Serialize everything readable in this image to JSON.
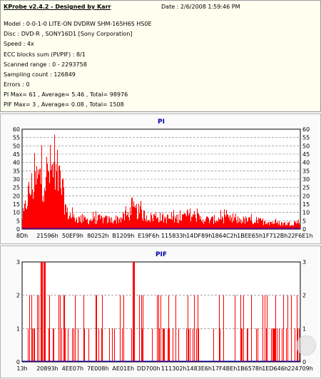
{
  "info": {
    "title": "KProbe v2.4.2 - Designed by Karr",
    "date": "Date : 2/6/2008 1:59:46 PM",
    "lines": [
      "Model : 0-0-1-0 LITE-ON DVDRW SHM-165H6S HS0E",
      "Disc : DVD-R , SONY16D1 [Sony Corporation]",
      "Speed : 4x",
      "ECC blocks sum (PI/PIF) : 8/1",
      "Scanned range : 0 - 2293758",
      "Sampling count : 126849",
      "Errors : 0",
      "PI Max= 61 , Average= 5.46 , Total= 98976",
      "PIF Max= 3 , Average= 0.08 , Total= 1508"
    ]
  },
  "chart_data": [
    {
      "type": "area",
      "title": "PI",
      "ylim": [
        0,
        60
      ],
      "yticks": [
        0,
        5,
        10,
        15,
        20,
        25,
        30,
        35,
        40,
        45,
        50,
        55,
        60
      ],
      "xticks": [
        "8Dh",
        "21596h",
        "50EF9h",
        "80252h",
        "B1209h",
        "E19F6h",
        "115833h",
        "14DF89h",
        "1864C2h",
        "1BEE65h",
        "1F712Bh",
        "22F6E1h"
      ],
      "max": 61,
      "profile": [
        [
          0,
          8
        ],
        [
          2,
          30
        ],
        [
          4,
          40
        ],
        [
          6,
          45
        ],
        [
          8,
          46
        ],
        [
          10,
          52
        ],
        [
          12,
          50
        ],
        [
          14,
          38
        ],
        [
          16,
          14
        ],
        [
          18,
          11
        ],
        [
          20,
          9
        ],
        [
          24,
          8
        ],
        [
          28,
          9
        ],
        [
          32,
          8
        ],
        [
          36,
          10
        ],
        [
          38,
          13
        ],
        [
          40,
          17
        ],
        [
          42,
          15
        ],
        [
          44,
          12
        ],
        [
          46,
          10
        ],
        [
          48,
          12
        ],
        [
          50,
          10
        ],
        [
          54,
          9
        ],
        [
          58,
          11
        ],
        [
          60,
          13
        ],
        [
          62,
          12
        ],
        [
          64,
          9
        ],
        [
          68,
          8
        ],
        [
          72,
          10
        ],
        [
          76,
          8
        ],
        [
          80,
          8
        ],
        [
          84,
          7
        ],
        [
          88,
          7
        ],
        [
          92,
          5
        ],
        [
          96,
          5
        ],
        [
          100,
          7
        ]
      ],
      "colors": {
        "fill": "#ff0000",
        "grid": "#777777",
        "line": "#0000dd"
      }
    },
    {
      "type": "bar",
      "title": "PIF",
      "ylim": [
        0,
        3
      ],
      "yticks": [
        0,
        1,
        2,
        3
      ],
      "xticks": [
        "13h",
        "20893h",
        "4EE07h",
        "7E008h",
        "AE01Eh",
        "DD700h",
        "111302h",
        "1483E6h",
        "17F4BEh",
        "1B6578h",
        "1ED646h",
        "224709h"
      ],
      "max": 3,
      "profile": [
        [
          1,
          1
        ],
        [
          2,
          2
        ],
        [
          3,
          1
        ],
        [
          4,
          1
        ],
        [
          5,
          2
        ],
        [
          6,
          1
        ],
        [
          7,
          3
        ],
        [
          8,
          3
        ],
        [
          9,
          1
        ],
        [
          10,
          2
        ],
        [
          11,
          1
        ],
        [
          12,
          2
        ],
        [
          13,
          1
        ],
        [
          14,
          1
        ],
        [
          15,
          2
        ],
        [
          16,
          1
        ],
        [
          17,
          1
        ],
        [
          18,
          2
        ],
        [
          19,
          1
        ],
        [
          20,
          1
        ],
        [
          21,
          2
        ],
        [
          22,
          1
        ],
        [
          23,
          1
        ],
        [
          24,
          2
        ],
        [
          25,
          1
        ],
        [
          26,
          1
        ],
        [
          27,
          2
        ],
        [
          28,
          1
        ],
        [
          29,
          1
        ],
        [
          30,
          2
        ],
        [
          31,
          1
        ],
        [
          32,
          1
        ],
        [
          33,
          2
        ],
        [
          34,
          1
        ],
        [
          35,
          2
        ],
        [
          36,
          1
        ],
        [
          37,
          1
        ],
        [
          38,
          2
        ],
        [
          39,
          1
        ],
        [
          40,
          3
        ],
        [
          41,
          1
        ],
        [
          42,
          2
        ],
        [
          43,
          1
        ],
        [
          44,
          1
        ],
        [
          45,
          2
        ],
        [
          46,
          1
        ],
        [
          47,
          1
        ],
        [
          48,
          2
        ],
        [
          49,
          1
        ],
        [
          50,
          1
        ],
        [
          51,
          2
        ],
        [
          52,
          1
        ],
        [
          53,
          1
        ],
        [
          54,
          2
        ],
        [
          55,
          1
        ],
        [
          56,
          1
        ],
        [
          57,
          2
        ],
        [
          58,
          1
        ],
        [
          59,
          1
        ],
        [
          60,
          2
        ],
        [
          61,
          1
        ],
        [
          62,
          1
        ],
        [
          63,
          2
        ],
        [
          64,
          1
        ],
        [
          65,
          1
        ],
        [
          66,
          2
        ],
        [
          67,
          1
        ],
        [
          68,
          1
        ],
        [
          69,
          2
        ],
        [
          70,
          1
        ],
        [
          71,
          1
        ],
        [
          72,
          2
        ],
        [
          73,
          1
        ],
        [
          74,
          1
        ],
        [
          75,
          1
        ],
        [
          76,
          2
        ],
        [
          77,
          1
        ],
        [
          78,
          1
        ],
        [
          79,
          1
        ],
        [
          80,
          2
        ],
        [
          81,
          1
        ],
        [
          82,
          1
        ],
        [
          83,
          1
        ],
        [
          84,
          2
        ],
        [
          85,
          1
        ],
        [
          86,
          1
        ],
        [
          87,
          1
        ],
        [
          88,
          2
        ],
        [
          89,
          1
        ],
        [
          90,
          1
        ],
        [
          91,
          1
        ],
        [
          92,
          1
        ],
        [
          93,
          2
        ],
        [
          94,
          1
        ],
        [
          95,
          1
        ],
        [
          96,
          1
        ],
        [
          97,
          1
        ],
        [
          98,
          1
        ],
        [
          99,
          2
        ]
      ],
      "colors": {
        "fill": "#ff0000",
        "grid": "#777777",
        "line": "#0000dd"
      }
    }
  ]
}
